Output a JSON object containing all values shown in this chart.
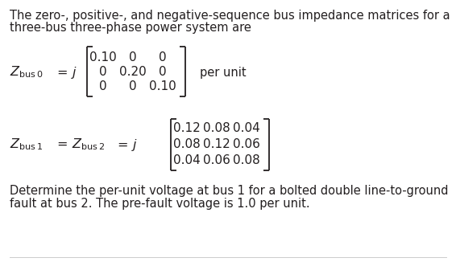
{
  "bg_color": "#ffffff",
  "text_color": "#231f20",
  "line1": "The zero-, positive-, and negative-sequence bus impedance matrices for a",
  "line2": "three-bus three-phase power system are",
  "matrix0": [
    [
      "0.10",
      "0",
      "0"
    ],
    [
      "0",
      "0.20",
      "0"
    ],
    [
      "0",
      "0",
      "0.10"
    ]
  ],
  "matrix0_extra": "per unit",
  "matrix12": [
    [
      "0.12",
      "0.08",
      "0.04"
    ],
    [
      "0.08",
      "0.12",
      "0.06"
    ],
    [
      "0.04",
      "0.06",
      "0.08"
    ]
  ],
  "footer1": "Determine the per-unit voltage at bus 1 for a bolted double line-to-ground",
  "footer2": "fault at bus 2. The pre-fault voltage is 1.0 per unit.",
  "font_size_body": 10.5,
  "font_size_matrix": 11.0,
  "fig_w": 5.66,
  "fig_h": 3.26,
  "dpi": 100
}
